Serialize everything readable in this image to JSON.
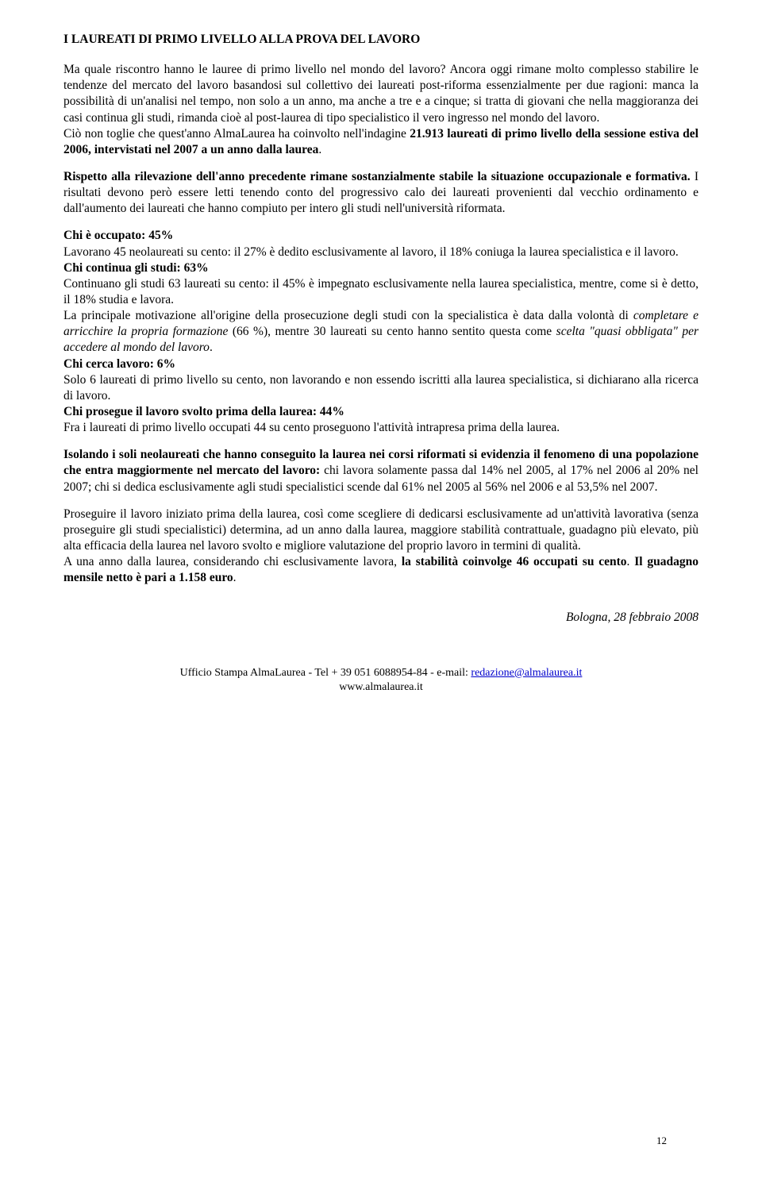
{
  "title": "I LAUREATI DI PRIMO LIVELLO ALLA PROVA DEL LAVORO",
  "intro": {
    "p1": "Ma quale riscontro hanno le lauree di primo livello nel mondo del lavoro? Ancora oggi rimane molto complesso stabilire le tendenze del mercato del lavoro basandosi sul collettivo dei laureati post-riforma essenzialmente per due ragioni: manca la possibilità di un'analisi nel tempo, non solo a un anno, ma anche a tre e a cinque; si tratta di giovani che nella maggioranza dei casi continua gli studi, rimanda cioè al post-laurea di tipo specialistico il vero ingresso nel mondo del lavoro.",
    "p2a": "Ciò non toglie che quest'anno AlmaLaurea ha coinvolto nell'indagine ",
    "p2b": "21.913 laureati di primo livello della sessione estiva del 2006, intervistati nel 2007 a un anno dalla laurea",
    "p2c": "."
  },
  "rilevazione": {
    "lead_bold": "Rispetto alla rilevazione dell'anno precedente rimane sostanzialmente stabile la situazione occupazionale e formativa.",
    "rest": " I risultati devono però essere letti tenendo conto del progressivo calo dei laureati provenienti dal vecchio ordinamento e dall'aumento dei laureati che hanno compiuto per intero gli studi nell'università riformata."
  },
  "occupato": {
    "head": "Chi è occupato: 45%",
    "body": "Lavorano 45 neolaureati su cento: il 27% è dedito esclusivamente al lavoro, il 18% coniuga la laurea specialistica e il lavoro."
  },
  "continua": {
    "head": "Chi continua gli studi: 63%",
    "body1": "Continuano gli studi 63 laureati su cento: il 45% è impegnato esclusivamente nella laurea specialistica, mentre, come si è detto, il 18% studia e lavora.",
    "body2a": "La principale motivazione all'origine della prosecuzione degli studi con la specialistica è data dalla volontà di ",
    "body2_ital1": "completare e arricchire la propria formazione",
    "body2b": " (66 %), mentre 30 laureati su cento hanno sentito questa come ",
    "body2_ital2": "scelta \"quasi obbligata\" per accedere al mondo del lavoro",
    "body2c": "."
  },
  "cerca": {
    "head": "Chi cerca lavoro: 6%",
    "body": "Solo 6 laureati di primo livello su cento, non lavorando e non essendo iscritti alla laurea specialistica, si dichiarano alla ricerca di lavoro."
  },
  "prosegue": {
    "head": "Chi prosegue il lavoro svolto prima della laurea: 44%",
    "body": "Fra i laureati di primo livello occupati 44 su cento proseguono l'attività intrapresa prima della laurea."
  },
  "isolando": {
    "bold1": "Isolando i soli neolaureati che hanno conseguito la laurea nei corsi riformati si evidenzia il fenomeno di una popolazione che entra maggiormente nel mercato del lavoro:",
    "rest": " chi lavora solamente passa dal 14% nel 2005, al 17% nel 2006 al 20% nel 2007; chi si dedica esclusivamente agli studi specialistici scende dal 61% nel 2005 al 56% nel 2006 e al 53,5% nel 2007."
  },
  "proseguire": {
    "p1": "Proseguire il lavoro iniziato prima della laurea, così come scegliere di dedicarsi esclusivamente ad un'attività lavorativa (senza proseguire gli studi specialistici) determina, ad un anno dalla laurea, maggiore stabilità contrattuale, guadagno più elevato, più alta efficacia della laurea nel lavoro svolto e migliore valutazione del proprio lavoro in termini di qualità.",
    "p2a": "A una anno dalla laurea, considerando chi esclusivamente lavora, ",
    "p2b": "la stabilità coinvolge 46 occupati su cento",
    "p2c": ". ",
    "p2d": "Il guadagno mensile netto è pari a 1.158 euro",
    "p2e": "."
  },
  "signature": "Bologna, 28 febbraio 2008",
  "footer": {
    "line1a": "Ufficio Stampa AlmaLaurea - Tel + 39 051 6088954-84 - e-mail: ",
    "email": "redazione@almalaurea.it",
    "line2": "www.almalaurea.it"
  },
  "page_number": "12"
}
